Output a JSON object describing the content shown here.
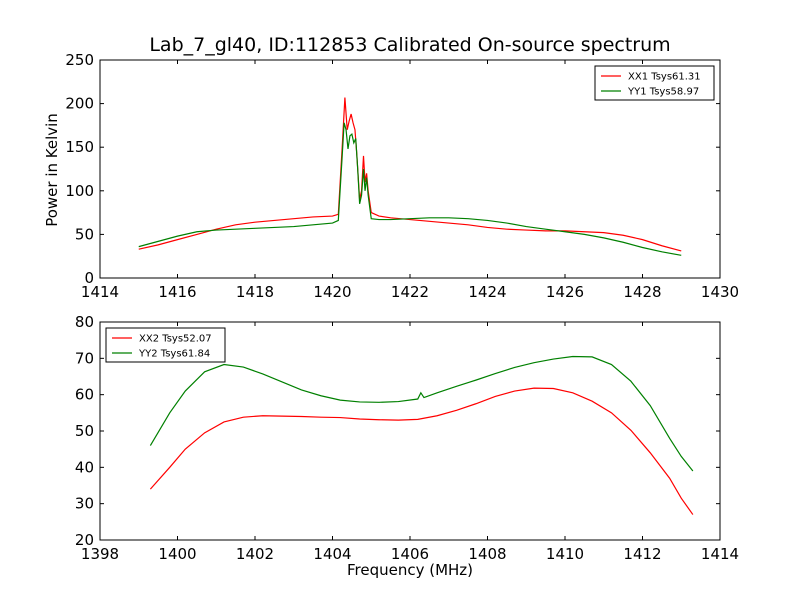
{
  "figure": {
    "title": "Lab_7_gl40, ID:112853 Calibrated On-source spectrum",
    "xlabel": "Frequency (MHz)",
    "ylabel": "Power in Kelvin"
  },
  "chart_data": [
    {
      "type": "line",
      "title": "Lab_7_gl40, ID:112853 Calibrated On-source spectrum",
      "xlabel": "",
      "ylabel": "Power in Kelvin",
      "xlim": [
        1414,
        1430
      ],
      "ylim": [
        0,
        250
      ],
      "xticks": [
        1414,
        1416,
        1418,
        1420,
        1422,
        1424,
        1426,
        1428,
        1430
      ],
      "yticks": [
        0,
        50,
        100,
        150,
        200,
        250
      ],
      "grid": false,
      "legend": "top-right",
      "series": [
        {
          "name": "XX1 Tsys61.31",
          "color": "#ff0000",
          "points": [
            [
              1415.0,
              33
            ],
            [
              1415.5,
              38
            ],
            [
              1416.0,
              44
            ],
            [
              1416.5,
              50
            ],
            [
              1417.0,
              56
            ],
            [
              1417.5,
              61
            ],
            [
              1418.0,
              64
            ],
            [
              1418.5,
              66
            ],
            [
              1419.0,
              68
            ],
            [
              1419.5,
              70
            ],
            [
              1420.0,
              71
            ],
            [
              1420.15,
              73
            ],
            [
              1420.25,
              150
            ],
            [
              1420.32,
              207
            ],
            [
              1420.38,
              170
            ],
            [
              1420.43,
              180
            ],
            [
              1420.48,
              188
            ],
            [
              1420.53,
              178
            ],
            [
              1420.58,
              170
            ],
            [
              1420.63,
              140
            ],
            [
              1420.7,
              90
            ],
            [
              1420.75,
              100
            ],
            [
              1420.8,
              140
            ],
            [
              1420.84,
              110
            ],
            [
              1420.88,
              120
            ],
            [
              1420.92,
              100
            ],
            [
              1421.0,
              75
            ],
            [
              1421.2,
              71
            ],
            [
              1421.5,
              69
            ],
            [
              1422.0,
              67
            ],
            [
              1422.5,
              65
            ],
            [
              1423.0,
              63
            ],
            [
              1423.5,
              61
            ],
            [
              1424.0,
              58
            ],
            [
              1424.5,
              56
            ],
            [
              1425.0,
              55
            ],
            [
              1425.5,
              54
            ],
            [
              1426.0,
              54
            ],
            [
              1426.5,
              53
            ],
            [
              1427.0,
              52
            ],
            [
              1427.5,
              49
            ],
            [
              1428.0,
              44
            ],
            [
              1428.5,
              37
            ],
            [
              1429.0,
              31
            ]
          ]
        },
        {
          "name": "YY1 Tsys58.97",
          "color": "#008000",
          "points": [
            [
              1415.0,
              36
            ],
            [
              1415.5,
              42
            ],
            [
              1416.0,
              48
            ],
            [
              1416.5,
              53
            ],
            [
              1417.0,
              55
            ],
            [
              1417.5,
              56
            ],
            [
              1418.0,
              57
            ],
            [
              1418.5,
              58
            ],
            [
              1419.0,
              59
            ],
            [
              1419.5,
              61
            ],
            [
              1420.0,
              63
            ],
            [
              1420.15,
              66
            ],
            [
              1420.25,
              140
            ],
            [
              1420.3,
              178
            ],
            [
              1420.35,
              170
            ],
            [
              1420.4,
              148
            ],
            [
              1420.45,
              163
            ],
            [
              1420.5,
              165
            ],
            [
              1420.55,
              155
            ],
            [
              1420.6,
              160
            ],
            [
              1420.65,
              125
            ],
            [
              1420.7,
              85
            ],
            [
              1420.75,
              95
            ],
            [
              1420.8,
              125
            ],
            [
              1420.84,
              100
            ],
            [
              1420.88,
              115
            ],
            [
              1420.92,
              95
            ],
            [
              1421.0,
              68
            ],
            [
              1421.2,
              67
            ],
            [
              1421.5,
              67
            ],
            [
              1422.0,
              68
            ],
            [
              1422.5,
              69
            ],
            [
              1423.0,
              69
            ],
            [
              1423.5,
              68
            ],
            [
              1424.0,
              66
            ],
            [
              1424.5,
              63
            ],
            [
              1425.0,
              59
            ],
            [
              1425.5,
              56
            ],
            [
              1426.0,
              53
            ],
            [
              1426.5,
              50
            ],
            [
              1427.0,
              46
            ],
            [
              1427.5,
              41
            ],
            [
              1428.0,
              35
            ],
            [
              1428.5,
              30
            ],
            [
              1429.0,
              26
            ]
          ]
        }
      ]
    },
    {
      "type": "line",
      "title": "",
      "xlabel": "Frequency (MHz)",
      "ylabel": "",
      "xlim": [
        1398,
        1414
      ],
      "ylim": [
        20,
        80
      ],
      "xticks": [
        1398,
        1400,
        1402,
        1404,
        1406,
        1408,
        1410,
        1412,
        1414
      ],
      "yticks": [
        20,
        30,
        40,
        50,
        60,
        70,
        80
      ],
      "grid": false,
      "legend": "top-left",
      "series": [
        {
          "name": "XX2 Tsys52.07",
          "color": "#ff0000",
          "points": [
            [
              1399.3,
              34
            ],
            [
              1399.8,
              40
            ],
            [
              1400.2,
              45
            ],
            [
              1400.7,
              49.5
            ],
            [
              1401.2,
              52.5
            ],
            [
              1401.7,
              53.8
            ],
            [
              1402.2,
              54.2
            ],
            [
              1402.7,
              54.1
            ],
            [
              1403.2,
              54
            ],
            [
              1403.7,
              53.8
            ],
            [
              1404.2,
              53.7
            ],
            [
              1404.7,
              53.3
            ],
            [
              1405.2,
              53.1
            ],
            [
              1405.7,
              53
            ],
            [
              1406.2,
              53.2
            ],
            [
              1406.7,
              54.2
            ],
            [
              1407.2,
              55.7
            ],
            [
              1407.7,
              57.5
            ],
            [
              1408.2,
              59.5
            ],
            [
              1408.7,
              61
            ],
            [
              1409.2,
              61.8
            ],
            [
              1409.7,
              61.7
            ],
            [
              1410.2,
              60.5
            ],
            [
              1410.7,
              58.2
            ],
            [
              1411.2,
              55
            ],
            [
              1411.7,
              50.2
            ],
            [
              1412.2,
              44
            ],
            [
              1412.7,
              37
            ],
            [
              1413.0,
              31.5
            ],
            [
              1413.3,
              27
            ]
          ]
        },
        {
          "name": "YY2 Tsys61.84",
          "color": "#008000",
          "points": [
            [
              1399.3,
              46
            ],
            [
              1399.8,
              55
            ],
            [
              1400.2,
              61
            ],
            [
              1400.7,
              66.3
            ],
            [
              1401.2,
              68.3
            ],
            [
              1401.7,
              67.6
            ],
            [
              1402.2,
              65.7
            ],
            [
              1402.7,
              63.5
            ],
            [
              1403.2,
              61.3
            ],
            [
              1403.7,
              59.7
            ],
            [
              1404.2,
              58.5
            ],
            [
              1404.7,
              58
            ],
            [
              1405.2,
              57.9
            ],
            [
              1405.7,
              58.1
            ],
            [
              1406.2,
              58.8
            ],
            [
              1406.28,
              60.5
            ],
            [
              1406.36,
              59.2
            ],
            [
              1406.7,
              60.5
            ],
            [
              1407.2,
              62.3
            ],
            [
              1407.7,
              64
            ],
            [
              1408.2,
              65.8
            ],
            [
              1408.7,
              67.5
            ],
            [
              1409.2,
              68.8
            ],
            [
              1409.7,
              69.8
            ],
            [
              1410.2,
              70.5
            ],
            [
              1410.7,
              70.4
            ],
            [
              1411.2,
              68.3
            ],
            [
              1411.7,
              63.7
            ],
            [
              1412.2,
              57
            ],
            [
              1412.7,
              48
            ],
            [
              1413.0,
              43
            ],
            [
              1413.3,
              39
            ]
          ]
        }
      ]
    }
  ]
}
